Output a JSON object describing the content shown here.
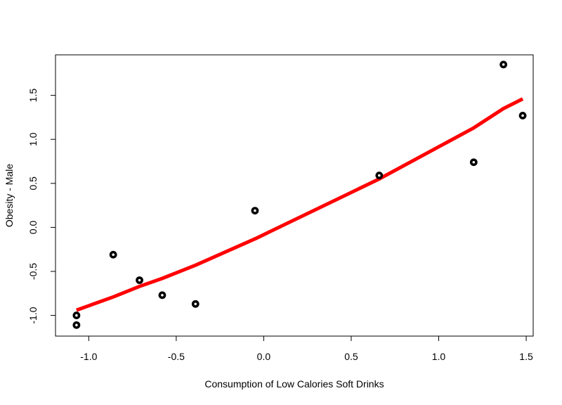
{
  "chart_data": {
    "type": "scatter",
    "title": "",
    "xlabel": "Consumption of Low Calories Soft Drinks",
    "ylabel": "Obesity - Male",
    "xlim": [
      -1.19,
      1.54
    ],
    "ylim": [
      -1.235,
      1.96
    ],
    "x_ticks": [
      -1.0,
      -0.5,
      0.0,
      0.5,
      1.0,
      1.5
    ],
    "x_tick_labels": [
      "-1.0",
      "-0.5",
      "0.0",
      "0.5",
      "1.0",
      "1.5"
    ],
    "y_ticks": [
      -1.0,
      -0.5,
      0.0,
      0.5,
      1.0,
      1.5
    ],
    "y_tick_labels": [
      "-1.0",
      "-0.5",
      "0.0",
      "0.5",
      "1.0",
      "1.5"
    ],
    "grid": false,
    "series": [
      {
        "kind": "points",
        "color": "#000000",
        "x": [
          -1.07,
          -1.07,
          -0.86,
          -0.71,
          -0.58,
          -0.39,
          -0.05,
          0.66,
          1.2,
          1.37,
          1.48
        ],
        "y": [
          -1.11,
          -1.0,
          -0.31,
          -0.6,
          -0.77,
          -0.87,
          0.19,
          0.59,
          0.74,
          1.85,
          1.27
        ]
      },
      {
        "kind": "line",
        "color": "#ff0000",
        "x": [
          -1.07,
          -0.86,
          -0.71,
          -0.58,
          -0.39,
          -0.05,
          0.66,
          1.2,
          1.37,
          1.48
        ],
        "y": [
          -0.94,
          -0.79,
          -0.67,
          -0.58,
          -0.43,
          -0.13,
          0.55,
          1.13,
          1.35,
          1.46
        ]
      }
    ]
  }
}
